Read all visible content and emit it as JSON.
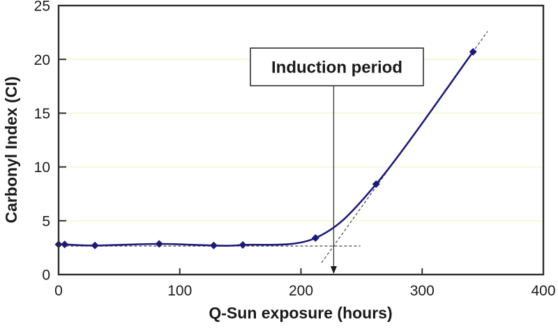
{
  "figure": {
    "background": "#ffffff"
  },
  "chart_data": {
    "type": "line",
    "title": "",
    "xlabel": "Q-Sun exposure (hours)",
    "ylabel": "Carbonyl Index (CI)",
    "xlim": [
      0,
      400
    ],
    "ylim": [
      0,
      25
    ],
    "x_ticks": [
      0,
      100,
      200,
      300,
      400
    ],
    "y_ticks": [
      0,
      5,
      10,
      15,
      20,
      25
    ],
    "grid": "horizontal-only",
    "gridline_color": "#f7f7dd",
    "axis_color": "#2e2e2e",
    "text_color": "#1a1a1a",
    "legend": "none",
    "series": [
      {
        "name": "Carbonyl Index (CI)",
        "color": "#1b1b78",
        "marker": "diamond",
        "line_width": 2.6,
        "x": [
          0,
          5,
          30,
          83,
          128,
          152,
          212,
          262,
          342
        ],
        "y": [
          2.8,
          2.8,
          2.7,
          2.85,
          2.7,
          2.75,
          3.4,
          8.4,
          20.7
        ]
      }
    ],
    "annotations": {
      "label_text": "Induction period",
      "arrow_x_hours": 227,
      "dash_color": "#555555",
      "baseline_tangent": {
        "y_ci": 2.65,
        "x_from": 6,
        "x_to": 249
      },
      "growth_tangent": {
        "x_from": 217,
        "y_from": 1.1,
        "x_to": 354,
        "y_to": 22.6
      }
    }
  }
}
